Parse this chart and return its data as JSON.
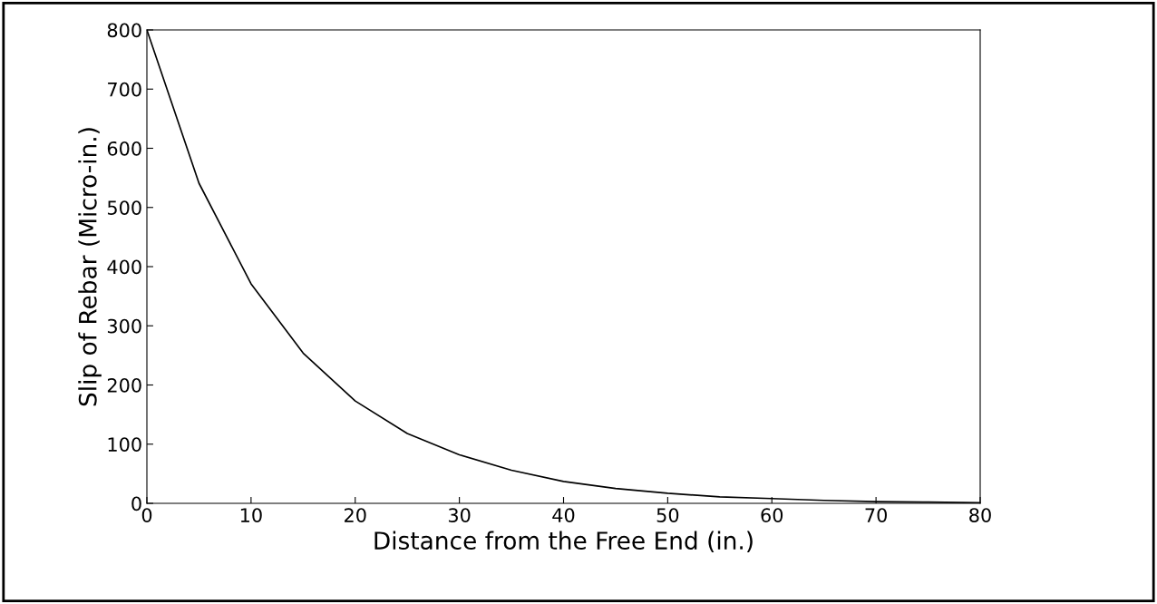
{
  "chart_data": {
    "type": "line",
    "xlabel": "Distance from the Free End (in.)",
    "ylabel": "Slip of Rebar (Micro-in.)",
    "x": [
      0,
      5,
      10,
      15,
      20,
      25,
      30,
      35,
      40,
      45,
      50,
      55,
      60,
      65,
      70,
      75,
      80
    ],
    "series": [
      {
        "color": "#000000",
        "values": [
          800,
          541,
          371,
          254,
          173,
          118,
          82,
          56,
          37,
          25,
          17,
          11,
          8,
          5,
          3,
          2,
          1
        ]
      }
    ],
    "xlim": [
      0,
      80
    ],
    "ylim": [
      0,
      800
    ],
    "xticks": [
      0,
      10,
      20,
      30,
      40,
      50,
      60,
      70,
      80
    ],
    "yticks": [
      0,
      100,
      200,
      300,
      400,
      500,
      600,
      700,
      800
    ],
    "grid": false,
    "legend": false,
    "marker": "none",
    "line_style": "solid"
  }
}
